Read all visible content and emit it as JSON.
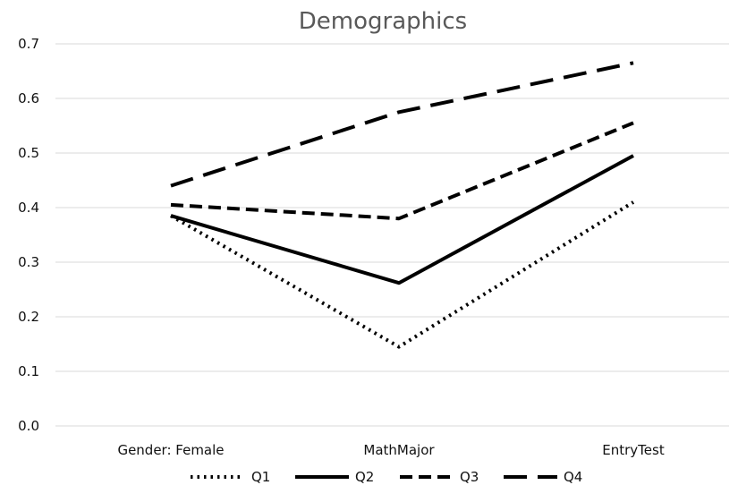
{
  "chart_data": {
    "type": "line",
    "title": "Demographics",
    "xlabel": "",
    "ylabel": "",
    "categories": [
      "Gender: Female",
      "MathMajor",
      "EntryTest"
    ],
    "ylim": [
      0.0,
      0.7
    ],
    "yticks": [
      "0.0",
      "0.1",
      "0.2",
      "0.3",
      "0.4",
      "0.5",
      "0.6",
      "0.7"
    ],
    "grid": true,
    "legend_position": "bottom",
    "series": [
      {
        "name": "Q1",
        "values": [
          0.385,
          0.145,
          0.41
        ],
        "style": "dotted",
        "color": "#000000"
      },
      {
        "name": "Q2",
        "values": [
          0.385,
          0.262,
          0.495
        ],
        "style": "solid",
        "color": "#000000"
      },
      {
        "name": "Q3",
        "values": [
          0.405,
          0.38,
          0.555
        ],
        "style": "dashed",
        "color": "#000000"
      },
      {
        "name": "Q4",
        "values": [
          0.44,
          0.575,
          0.665
        ],
        "style": "long-dashed",
        "color": "#000000"
      }
    ]
  }
}
